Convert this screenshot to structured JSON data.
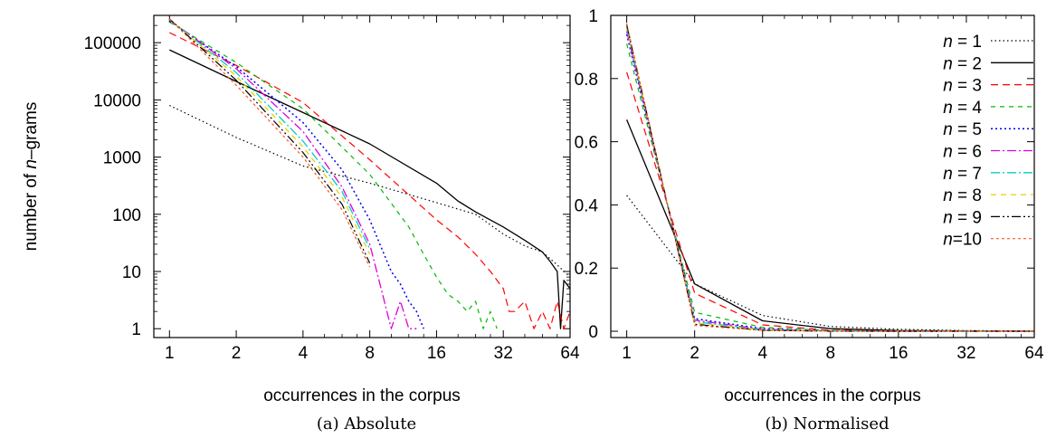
{
  "chart_data": [
    {
      "type": "line",
      "id": "a",
      "caption": "(a) Absolute",
      "xlabel": "occurrences in the corpus",
      "ylabel_prefix": "number of ",
      "ylabel_italic": "n",
      "ylabel_suffix": "–grams",
      "xscale": "log2",
      "yscale": "log10",
      "xlim": [
        0.85,
        64
      ],
      "ylim": [
        0.7,
        300000
      ],
      "xticks": [
        1,
        2,
        4,
        8,
        16,
        32,
        64
      ],
      "xtick_labels": [
        "1",
        "2",
        "4",
        "8",
        "16",
        "32",
        "64"
      ],
      "yticks": [
        1,
        10,
        100,
        1000,
        10000,
        100000
      ],
      "ytick_labels": [
        "1",
        "10",
        "100",
        "1000",
        "10000",
        "100000"
      ],
      "grid": false,
      "series": [
        {
          "name": "n = 1",
          "color": "#000000",
          "dash": "1.5,3",
          "width": 1.2,
          "x": [
            1,
            2,
            4,
            8,
            16,
            24,
            32,
            40,
            48,
            56,
            64
          ],
          "y": [
            8000,
            2200,
            700,
            350,
            160,
            100,
            45,
            28,
            22,
            13,
            8
          ]
        },
        {
          "name": "n = 2",
          "color": "#000000",
          "dash": "",
          "width": 1.3,
          "x": [
            1,
            2,
            4,
            8,
            16,
            20,
            24,
            32,
            40,
            48,
            52,
            56,
            58,
            60,
            64
          ],
          "y": [
            75000,
            21000,
            6000,
            1700,
            350,
            170,
            110,
            60,
            35,
            22,
            15,
            10,
            1,
            7,
            5
          ]
        },
        {
          "name": "n = 3",
          "color": "#ff0000",
          "dash": "8,5",
          "width": 1.2,
          "x": [
            1,
            2,
            4,
            8,
            16,
            20,
            24,
            28,
            32,
            34,
            36,
            40,
            44,
            48,
            52,
            56,
            60,
            64
          ],
          "y": [
            150000,
            40000,
            9000,
            900,
            80,
            40,
            20,
            10,
            5,
            2,
            2,
            3,
            1,
            2,
            1,
            3,
            1,
            2
          ]
        },
        {
          "name": "n = 4",
          "color": "#00bb00",
          "dash": "5,5",
          "width": 1.2,
          "x": [
            1,
            2,
            4,
            8,
            12,
            14,
            16,
            18,
            20,
            22,
            24,
            26,
            28,
            30
          ],
          "y": [
            230000,
            45000,
            7000,
            500,
            60,
            20,
            8,
            4,
            3,
            2,
            3,
            1,
            2,
            1
          ]
        },
        {
          "name": "n = 5",
          "color": "#0000ee",
          "dash": "2,3",
          "width": 1.5,
          "x": [
            1,
            2,
            4,
            6,
            8,
            10,
            11,
            12,
            13,
            14
          ],
          "y": [
            240000,
            38000,
            4000,
            600,
            80,
            10,
            6,
            3,
            2,
            1
          ]
        },
        {
          "name": "n = 6",
          "color": "#dd00dd",
          "dash": "10,3,2,3",
          "width": 1.3,
          "x": [
            1,
            2,
            4,
            6,
            8,
            9,
            10,
            11,
            12,
            13
          ],
          "y": [
            250000,
            35000,
            2800,
            300,
            30,
            5,
            1,
            3,
            1,
            1
          ]
        },
        {
          "name": "n = 7",
          "color": "#00cccc",
          "dash": "10,3,2,3",
          "width": 1.3,
          "x": [
            1,
            2,
            4,
            6,
            8
          ],
          "y": [
            255000,
            30000,
            1900,
            250,
            25
          ]
        },
        {
          "name": "n = 8",
          "color": "#e6d000",
          "dash": "6,5",
          "width": 1.3,
          "x": [
            1,
            2,
            4,
            6,
            8
          ],
          "y": [
            258000,
            26000,
            1500,
            200,
            20
          ]
        },
        {
          "name": "n = 9",
          "color": "#000000",
          "dash": "10,3,2,3,2,3",
          "width": 1.2,
          "x": [
            1,
            2,
            4,
            6,
            8
          ],
          "y": [
            260000,
            22000,
            1200,
            150,
            14
          ]
        },
        {
          "name": "n=10",
          "color": "#ff5522",
          "dash": "3,3",
          "width": 1.2,
          "x": [
            1,
            2,
            4,
            6,
            8
          ],
          "y": [
            262000,
            18000,
            1000,
            120,
            12
          ]
        }
      ]
    },
    {
      "type": "line",
      "id": "b",
      "caption": "(b) Normalised",
      "xlabel": "occurrences in the corpus",
      "xscale": "log2",
      "yscale": "linear",
      "xlim": [
        0.85,
        64
      ],
      "ylim": [
        -0.02,
        1
      ],
      "xticks": [
        1,
        2,
        4,
        8,
        16,
        32,
        64
      ],
      "xtick_labels": [
        "1",
        "2",
        "4",
        "8",
        "16",
        "32",
        "64"
      ],
      "yticks": [
        0,
        0.2,
        0.4,
        0.6,
        0.8,
        1
      ],
      "ytick_labels": [
        "0",
        "0.2",
        "0.4",
        "0.6",
        "0.8",
        "1"
      ],
      "grid": false,
      "legend_position": "top-right",
      "series": [
        {
          "name": "n = 1",
          "x": [
            1,
            2,
            4,
            8,
            16,
            32,
            64
          ],
          "y": [
            0.43,
            0.15,
            0.05,
            0.015,
            0.006,
            0.002,
            0.001
          ]
        },
        {
          "name": "n = 2",
          "x": [
            1,
            2,
            4,
            8,
            16,
            32,
            64
          ],
          "y": [
            0.67,
            0.15,
            0.033,
            0.008,
            0.002,
            0.001,
            0.0
          ]
        },
        {
          "name": "n = 3",
          "x": [
            1,
            2,
            4,
            8,
            16,
            32,
            64
          ],
          "y": [
            0.82,
            0.12,
            0.02,
            0.003,
            0.001,
            0.0,
            0.0
          ]
        },
        {
          "name": "n = 4",
          "x": [
            1,
            2,
            4,
            8,
            16,
            32,
            64
          ],
          "y": [
            0.91,
            0.06,
            0.012,
            0.002,
            0.0,
            0.0,
            0.0
          ]
        },
        {
          "name": "n = 5",
          "x": [
            1,
            2,
            4,
            8,
            16,
            32,
            64
          ],
          "y": [
            0.94,
            0.04,
            0.008,
            0.001,
            0.0,
            0.0,
            0.0
          ]
        },
        {
          "name": "n = 6",
          "x": [
            1,
            2,
            4,
            8,
            16,
            32,
            64
          ],
          "y": [
            0.95,
            0.035,
            0.006,
            0.001,
            0.0,
            0.0,
            0.0
          ]
        },
        {
          "name": "n = 7",
          "x": [
            1,
            2,
            4,
            8,
            16,
            32,
            64
          ],
          "y": [
            0.96,
            0.03,
            0.005,
            0.001,
            0.0,
            0.0,
            0.0
          ]
        },
        {
          "name": "n = 8",
          "x": [
            1,
            2,
            4,
            8,
            16,
            32,
            64
          ],
          "y": [
            0.965,
            0.026,
            0.004,
            0.0,
            0.0,
            0.0,
            0.0
          ]
        },
        {
          "name": "n = 9",
          "x": [
            1,
            2,
            4,
            8,
            16,
            32,
            64
          ],
          "y": [
            0.97,
            0.022,
            0.003,
            0.0,
            0.0,
            0.0,
            0.0
          ]
        },
        {
          "name": "n=10",
          "x": [
            1,
            2,
            4,
            8,
            16,
            32,
            64
          ],
          "y": [
            0.975,
            0.018,
            0.003,
            0.0,
            0.0,
            0.0,
            0.0
          ]
        }
      ]
    }
  ]
}
